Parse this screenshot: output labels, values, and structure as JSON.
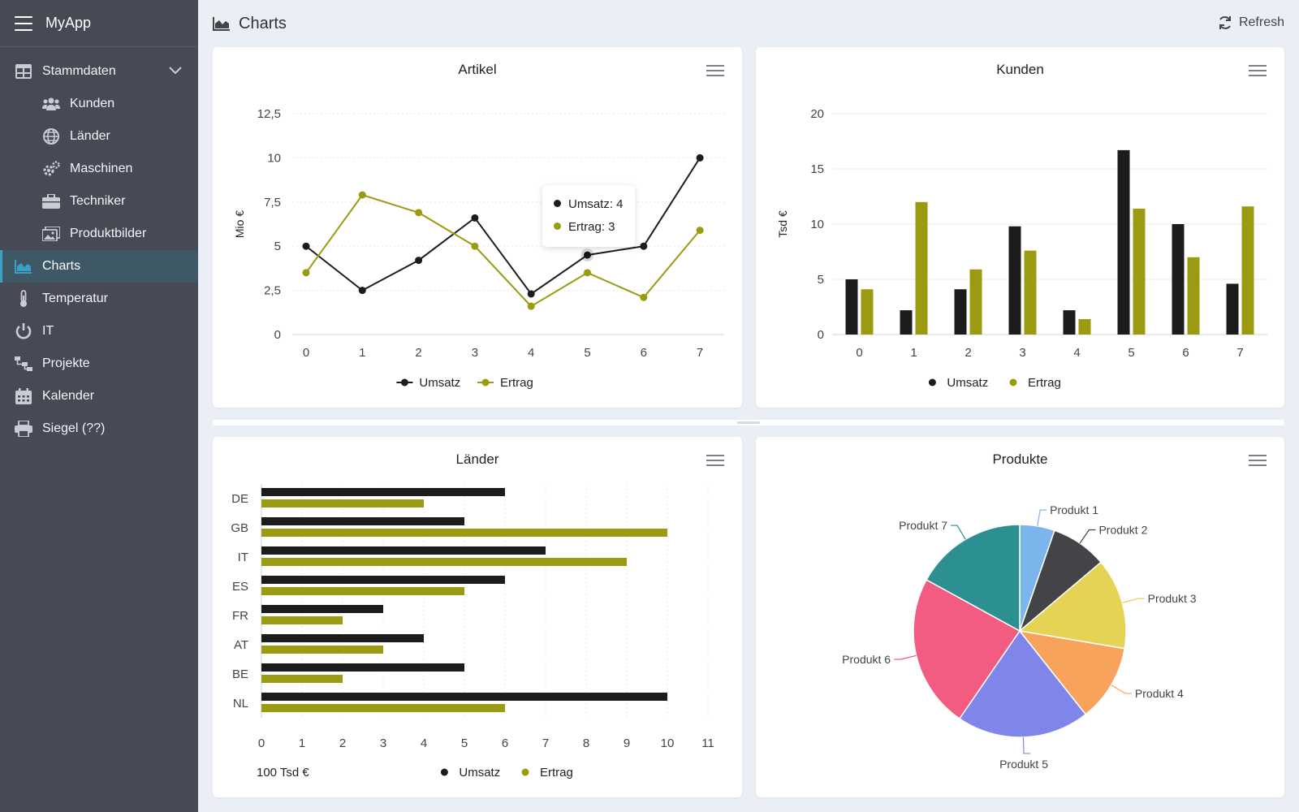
{
  "app": {
    "name": "MyApp"
  },
  "sidebar": {
    "items": [
      {
        "label": "Stammdaten",
        "icon": "table-icon",
        "expanded": true
      },
      {
        "label": "Kunden",
        "icon": "users-icon"
      },
      {
        "label": "Länder",
        "icon": "globe-icon"
      },
      {
        "label": "Maschinen",
        "icon": "cogs-icon"
      },
      {
        "label": "Techniker",
        "icon": "briefcase-icon"
      },
      {
        "label": "Produktbilder",
        "icon": "image-icon"
      },
      {
        "label": "Charts",
        "icon": "area-chart-icon",
        "active": true
      },
      {
        "label": "Temperatur",
        "icon": "thermometer-icon"
      },
      {
        "label": "IT",
        "icon": "power-icon"
      },
      {
        "label": "Projekte",
        "icon": "sitemap-icon"
      },
      {
        "label": "Kalender",
        "icon": "calendar-icon"
      },
      {
        "label": "Siegel (??)",
        "icon": "print-icon"
      }
    ]
  },
  "header": {
    "title": "Charts",
    "refresh_label": "Refresh"
  },
  "colors": {
    "umsatz": "#1c1c1c",
    "ertrag": "#9b9b12",
    "accent": "#3aa0c8"
  },
  "tooltip": {
    "umsatz": "Umsatz: 4",
    "ertrag": "Ertrag: 3"
  },
  "chart_data": [
    {
      "id": "artikel",
      "type": "line",
      "title": "Artikel",
      "ylabel": "Mio €",
      "x": [
        0,
        1,
        2,
        3,
        4,
        5,
        6,
        7
      ],
      "y_ticks": [
        "0",
        "2,5",
        "5",
        "7,5",
        "10",
        "12,5"
      ],
      "ylim": [
        0,
        12.5
      ],
      "series": [
        {
          "name": "Umsatz",
          "values": [
            5,
            2.5,
            4.2,
            6.6,
            2.3,
            4.5,
            5,
            10
          ]
        },
        {
          "name": "Ertrag",
          "values": [
            3.5,
            7.9,
            6.9,
            5,
            1.6,
            3.5,
            2.1,
            5.9
          ]
        }
      ],
      "legend": "bottom"
    },
    {
      "id": "kunden",
      "type": "bar",
      "title": "Kunden",
      "ylabel": "Tsd €",
      "categories": [
        "0",
        "1",
        "2",
        "3",
        "4",
        "5",
        "6",
        "7"
      ],
      "y_ticks": [
        "0",
        "5",
        "10",
        "15",
        "20"
      ],
      "ylim": [
        0,
        20
      ],
      "series": [
        {
          "name": "Umsatz",
          "values": [
            5,
            2.2,
            4.1,
            9.8,
            2.2,
            16.7,
            10,
            4.6
          ]
        },
        {
          "name": "Ertrag",
          "values": [
            4.1,
            12,
            5.9,
            7.6,
            1.4,
            11.4,
            7,
            11.6
          ]
        }
      ],
      "legend": "bottom"
    },
    {
      "id": "laender",
      "type": "bar",
      "orientation": "horizontal",
      "title": "Länder",
      "xlabel": "100 Tsd €",
      "categories": [
        "DE",
        "GB",
        "IT",
        "ES",
        "FR",
        "AT",
        "BE",
        "NL"
      ],
      "x_ticks": [
        "0",
        "1",
        "2",
        "3",
        "4",
        "5",
        "6",
        "7",
        "8",
        "9",
        "10",
        "11"
      ],
      "xlim": [
        0,
        11
      ],
      "series": [
        {
          "name": "Umsatz",
          "values": [
            6,
            5,
            7,
            6,
            3,
            4,
            5,
            10
          ]
        },
        {
          "name": "Ertrag",
          "values": [
            4,
            10,
            9,
            5,
            2,
            3,
            2,
            6
          ]
        }
      ],
      "legend": "bottom"
    },
    {
      "id": "produkte",
      "type": "pie",
      "title": "Produkte",
      "slices": [
        {
          "label": "Produkt 1",
          "value": 5,
          "color": "#7cb5ec"
        },
        {
          "label": "Produkt 2",
          "value": 8,
          "color": "#434348"
        },
        {
          "label": "Produkt 3",
          "value": 13,
          "color": "#e4d354"
        },
        {
          "label": "Produkt 4",
          "value": 11,
          "color": "#f7a35c"
        },
        {
          "label": "Produkt 5",
          "value": 19,
          "color": "#8085e9"
        },
        {
          "label": "Produkt 6",
          "value": 22,
          "color": "#f15c80"
        },
        {
          "label": "Produkt 7",
          "value": 16,
          "color": "#2b908f"
        }
      ]
    }
  ]
}
